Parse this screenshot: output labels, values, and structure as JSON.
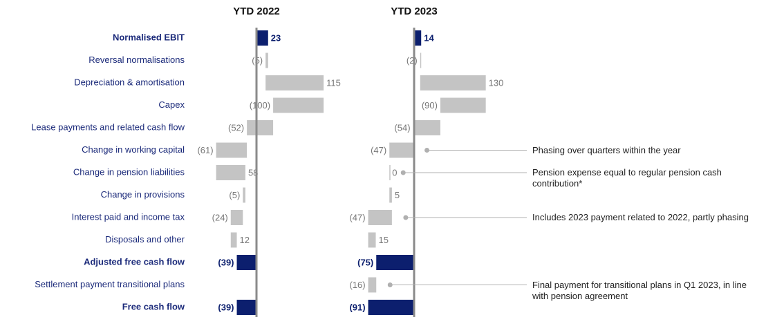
{
  "chart_data": {
    "type": "waterfall",
    "categories": [
      "Normalised EBIT",
      "Reversal normalisations",
      "Depreciation & amortisation",
      "Capex",
      "Lease payments and related cash flow",
      "Change in working capital",
      "Change in pension liabilities",
      "Change in provisions",
      "Interest paid and income tax",
      "Disposals and other",
      "Adjusted free cash flow",
      "Settlement payment transitional plans",
      "Free cash flow"
    ],
    "totals": [
      0,
      10,
      12
    ],
    "total_color": "#0c1f6e",
    "step_color": "#c4c4c4",
    "series": [
      {
        "name": "YTD 2022",
        "values": [
          23,
          -5,
          115,
          -100,
          -52,
          -61,
          58,
          -5,
          -24,
          12,
          -39,
          null,
          -39
        ],
        "value_labels": [
          "23",
          "(5)",
          "115",
          "(100)",
          "(52)",
          "(61)",
          "58",
          "(5)",
          "(24)",
          "12",
          "(39)",
          null,
          "(39)"
        ]
      },
      {
        "name": "YTD 2023",
        "values": [
          14,
          -2,
          130,
          -90,
          -54,
          -47,
          0,
          5,
          -47,
          15,
          -75,
          -16,
          -91
        ],
        "value_labels": [
          "14",
          "(2)",
          "130",
          "(90)",
          "(54)",
          "(47)",
          "0",
          "5",
          "(47)",
          "15",
          "(75)",
          "(16)",
          "(91)"
        ]
      }
    ],
    "annotations": [
      {
        "series": 1,
        "category": 5,
        "text": "Phasing over quarters within the year"
      },
      {
        "series": 1,
        "category": 6,
        "text": "Pension expense equal to regular pension cash contribution*"
      },
      {
        "series": 1,
        "category": 8,
        "text": "Includes 2023 payment related to 2022, partly phasing"
      },
      {
        "series": 1,
        "category": 11,
        "text": "Final payment for transitional plans in Q1 2023, in line with pension agreement"
      }
    ]
  }
}
